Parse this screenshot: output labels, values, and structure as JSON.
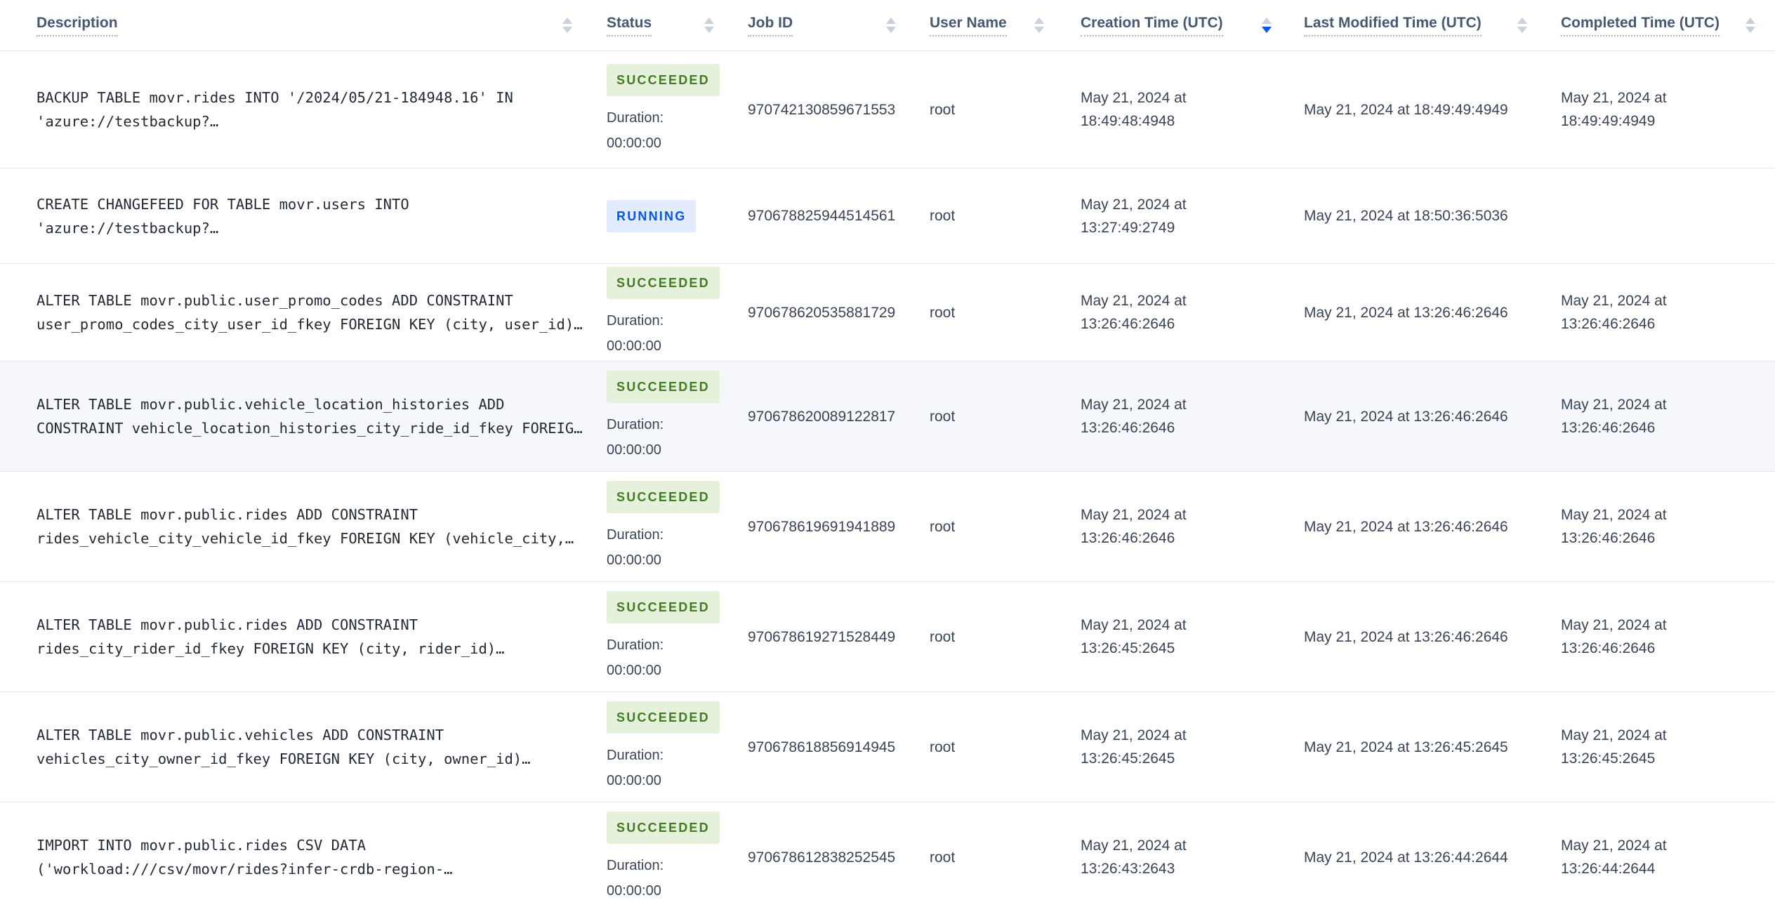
{
  "table": {
    "duration_label": "Duration:",
    "columns": [
      {
        "label": "Description",
        "sort": "none"
      },
      {
        "label": "Status",
        "sort": "none"
      },
      {
        "label": "Job ID",
        "sort": "none"
      },
      {
        "label": "User Name",
        "sort": "none"
      },
      {
        "label": "Creation Time (UTC)",
        "sort": "desc"
      },
      {
        "label": "Last Modified Time (UTC)",
        "sort": "none"
      },
      {
        "label": "Completed Time (UTC)",
        "sort": "none"
      }
    ],
    "sort": {
      "column": "Creation Time (UTC)",
      "direction": "desc"
    },
    "rows": [
      {
        "description_lines": [
          "BACKUP TABLE movr.rides INTO '/2024/05/21-184948.16' IN",
          "'azure://testbackup?…"
        ],
        "status": "SUCCEEDED",
        "duration": "00:00:00",
        "job_id": "970742130859671553",
        "user_name": "root",
        "creation_lines": [
          "May 21, 2024 at",
          "18:49:48:4948"
        ],
        "last_modified": "May 21, 2024 at 18:49:49:4949",
        "completed_lines": [
          "May 21, 2024 at",
          "18:49:49:4949"
        ],
        "highlighted": false
      },
      {
        "description_lines": [
          "CREATE CHANGEFEED FOR TABLE movr.users INTO",
          "'azure://testbackup?…"
        ],
        "status": "RUNNING",
        "duration": null,
        "job_id": "970678825944514561",
        "user_name": "root",
        "creation_lines": [
          "May 21, 2024 at",
          "13:27:49:2749"
        ],
        "last_modified": "May 21, 2024 at 18:50:36:5036",
        "completed_lines": [],
        "highlighted": false
      },
      {
        "description_lines": [
          "ALTER TABLE movr.public.user_promo_codes ADD CONSTRAINT",
          "user_promo_codes_city_user_id_fkey FOREIGN KEY (city, user_id)…"
        ],
        "status": "SUCCEEDED",
        "duration": "00:00:00",
        "job_id": "970678620535881729",
        "user_name": "root",
        "creation_lines": [
          "May 21, 2024 at",
          "13:26:46:2646"
        ],
        "last_modified": "May 21, 2024 at 13:26:46:2646",
        "completed_lines": [
          "May 21, 2024 at",
          "13:26:46:2646"
        ],
        "highlighted": false
      },
      {
        "description_lines": [
          "ALTER TABLE movr.public.vehicle_location_histories ADD",
          "CONSTRAINT vehicle_location_histories_city_ride_id_fkey FOREIG…"
        ],
        "status": "SUCCEEDED",
        "duration": "00:00:00",
        "job_id": "970678620089122817",
        "user_name": "root",
        "creation_lines": [
          "May 21, 2024 at",
          "13:26:46:2646"
        ],
        "last_modified": "May 21, 2024 at 13:26:46:2646",
        "completed_lines": [
          "May 21, 2024 at",
          "13:26:46:2646"
        ],
        "highlighted": true
      },
      {
        "description_lines": [
          "ALTER TABLE movr.public.rides ADD CONSTRAINT",
          "rides_vehicle_city_vehicle_id_fkey FOREIGN KEY (vehicle_city,…"
        ],
        "status": "SUCCEEDED",
        "duration": "00:00:00",
        "job_id": "970678619691941889",
        "user_name": "root",
        "creation_lines": [
          "May 21, 2024 at",
          "13:26:46:2646"
        ],
        "last_modified": "May 21, 2024 at 13:26:46:2646",
        "completed_lines": [
          "May 21, 2024 at",
          "13:26:46:2646"
        ],
        "highlighted": false
      },
      {
        "description_lines": [
          "ALTER TABLE movr.public.rides ADD CONSTRAINT",
          "rides_city_rider_id_fkey FOREIGN KEY (city, rider_id)…"
        ],
        "status": "SUCCEEDED",
        "duration": "00:00:00",
        "job_id": "970678619271528449",
        "user_name": "root",
        "creation_lines": [
          "May 21, 2024 at",
          "13:26:45:2645"
        ],
        "last_modified": "May 21, 2024 at 13:26:46:2646",
        "completed_lines": [
          "May 21, 2024 at",
          "13:26:46:2646"
        ],
        "highlighted": false
      },
      {
        "description_lines": [
          "ALTER TABLE movr.public.vehicles ADD CONSTRAINT",
          "vehicles_city_owner_id_fkey FOREIGN KEY (city, owner_id)…"
        ],
        "status": "SUCCEEDED",
        "duration": "00:00:00",
        "job_id": "970678618856914945",
        "user_name": "root",
        "creation_lines": [
          "May 21, 2024 at",
          "13:26:45:2645"
        ],
        "last_modified": "May 21, 2024 at 13:26:45:2645",
        "completed_lines": [
          "May 21, 2024 at",
          "13:26:45:2645"
        ],
        "highlighted": false
      },
      {
        "description_lines": [
          "IMPORT INTO movr.public.rides CSV DATA",
          "('workload:///csv/movr/rides?infer-crdb-region-…"
        ],
        "status": "SUCCEEDED",
        "duration": "00:00:00",
        "job_id": "970678612838252545",
        "user_name": "root",
        "creation_lines": [
          "May 21, 2024 at",
          "13:26:43:2643"
        ],
        "last_modified": "May 21, 2024 at 13:26:44:2644",
        "completed_lines": [
          "May 21, 2024 at",
          "13:26:44:2644"
        ],
        "highlighted": false
      }
    ],
    "colors": {
      "accent_blue": "#0055ff",
      "succeeded_bg": "#e5f1db",
      "succeeded_text": "#427c22",
      "running_bg": "#e2ecfe",
      "running_text": "#0055ff",
      "header_text": "#475872",
      "body_text": "#394455",
      "row_highlight_bg": "#f5f7fb",
      "sort_caret_inactive": "#c8cfdd"
    }
  }
}
